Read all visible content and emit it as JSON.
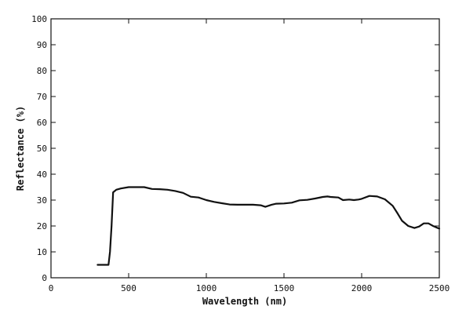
{
  "chart_data": {
    "type": "line",
    "title": "",
    "xlabel": "Wavelength (nm)",
    "ylabel": "Reflectance (%)",
    "xlim": [
      0,
      2500
    ],
    "ylim": [
      0,
      100
    ],
    "grid": false,
    "x_ticks": [
      0,
      500,
      1000,
      1500,
      2000,
      2500
    ],
    "y_ticks": [
      0,
      10,
      20,
      30,
      40,
      50,
      60,
      70,
      80,
      90,
      100
    ],
    "series": [
      {
        "color": "#111111",
        "points": [
          [
            300,
            5
          ],
          [
            340,
            5
          ],
          [
            370,
            5
          ],
          [
            380,
            10
          ],
          [
            390,
            20
          ],
          [
            400,
            33
          ],
          [
            420,
            34
          ],
          [
            450,
            34.5
          ],
          [
            500,
            35
          ],
          [
            550,
            35
          ],
          [
            600,
            35
          ],
          [
            650,
            34.3
          ],
          [
            700,
            34.2
          ],
          [
            750,
            34
          ],
          [
            800,
            33.5
          ],
          [
            850,
            32.8
          ],
          [
            900,
            31.3
          ],
          [
            950,
            31
          ],
          [
            1000,
            30
          ],
          [
            1050,
            29.3
          ],
          [
            1100,
            28.8
          ],
          [
            1150,
            28.3
          ],
          [
            1200,
            28.2
          ],
          [
            1250,
            28.2
          ],
          [
            1300,
            28.2
          ],
          [
            1350,
            28
          ],
          [
            1380,
            27.4
          ],
          [
            1420,
            28.2
          ],
          [
            1450,
            28.6
          ],
          [
            1500,
            28.7
          ],
          [
            1550,
            29
          ],
          [
            1600,
            29.9
          ],
          [
            1650,
            30.1
          ],
          [
            1700,
            30.6
          ],
          [
            1750,
            31.2
          ],
          [
            1780,
            31.4
          ],
          [
            1800,
            31.2
          ],
          [
            1850,
            31
          ],
          [
            1880,
            30
          ],
          [
            1920,
            30.2
          ],
          [
            1950,
            30
          ],
          [
            1980,
            30.2
          ],
          [
            2000,
            30.5
          ],
          [
            2050,
            31.6
          ],
          [
            2100,
            31.4
          ],
          [
            2150,
            30.3
          ],
          [
            2200,
            27.8
          ],
          [
            2230,
            25
          ],
          [
            2260,
            22
          ],
          [
            2300,
            20
          ],
          [
            2340,
            19.2
          ],
          [
            2370,
            19.8
          ],
          [
            2400,
            21
          ],
          [
            2430,
            21
          ],
          [
            2460,
            20
          ],
          [
            2490,
            19.2
          ],
          [
            2500,
            19
          ]
        ]
      }
    ]
  }
}
